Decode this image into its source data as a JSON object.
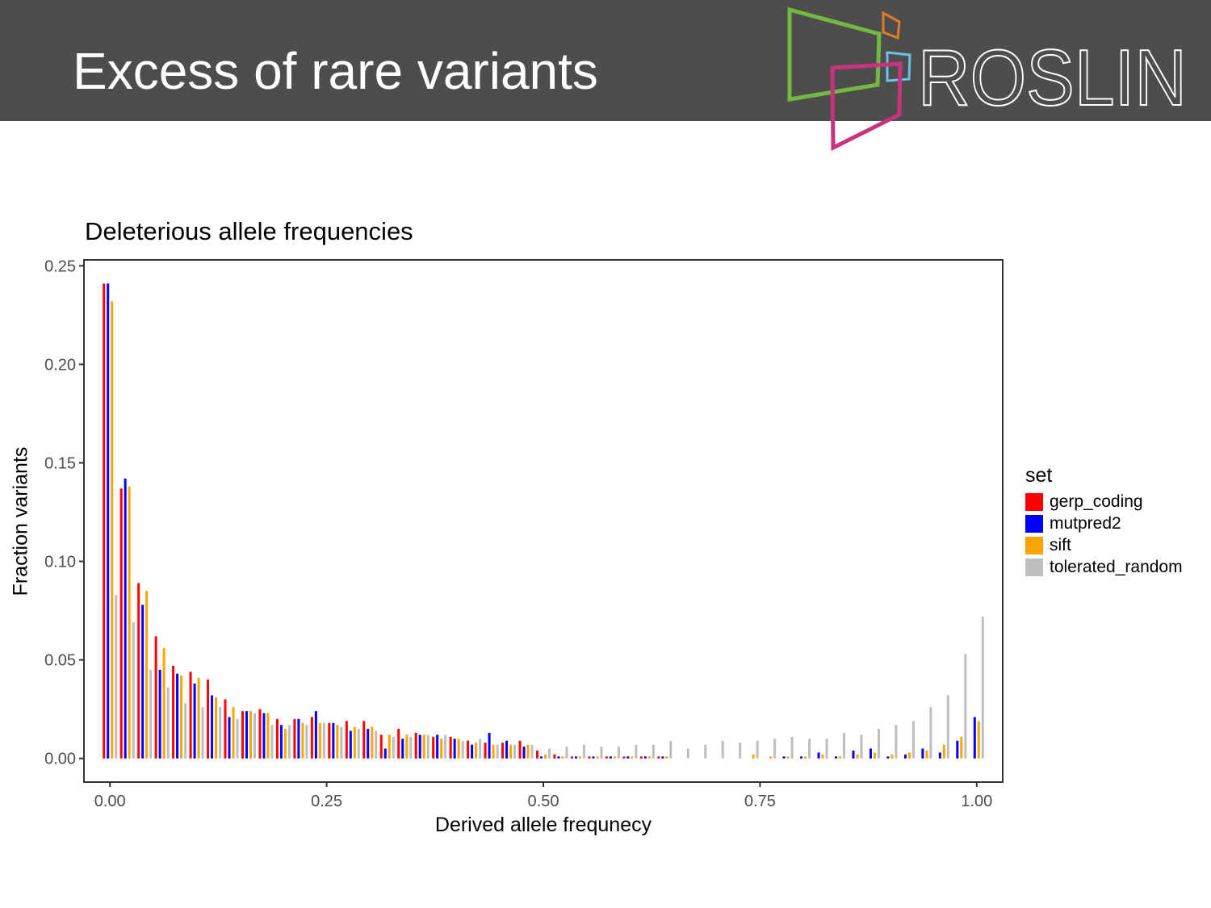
{
  "slide": {
    "title": "Excess of rare variants",
    "logo_text": "ROSLIN",
    "header_color": "#4d4d4d"
  },
  "chart_data": {
    "type": "bar",
    "title": "Deleterious allele frequencies",
    "xlabel": "Derived allele frequnecy",
    "ylabel": "Fraction variants",
    "xlim": [
      -0.03,
      1.03
    ],
    "ylim": [
      -0.012,
      0.253
    ],
    "x_ticks": [
      "0.00",
      "0.25",
      "0.50",
      "0.75",
      "1.00"
    ],
    "x_tick_values": [
      0,
      0.25,
      0.5,
      0.75,
      1
    ],
    "y_ticks": [
      "0.00",
      "0.05",
      "0.10",
      "0.15",
      "0.20",
      "0.25"
    ],
    "y_tick_values": [
      0,
      0.05,
      0.1,
      0.15,
      0.2,
      0.25
    ],
    "grid": false,
    "legend_title": "set",
    "legend_position": "right",
    "x": [
      0,
      0.02,
      0.04,
      0.06,
      0.08,
      0.1,
      0.12,
      0.14,
      0.16,
      0.18,
      0.2,
      0.22,
      0.24,
      0.26,
      0.28,
      0.3,
      0.32,
      0.34,
      0.36,
      0.38,
      0.4,
      0.42,
      0.44,
      0.46,
      0.48,
      0.5,
      0.52,
      0.54,
      0.56,
      0.58,
      0.6,
      0.62,
      0.64,
      0.66,
      0.68,
      0.7,
      0.72,
      0.74,
      0.76,
      0.78,
      0.8,
      0.82,
      0.84,
      0.86,
      0.88,
      0.9,
      0.92,
      0.94,
      0.96,
      0.98,
      1.0
    ],
    "series": [
      {
        "name": "gerp_coding",
        "color": "#ff0000",
        "values": [
          0.241,
          0.137,
          0.089,
          0.062,
          0.047,
          0.044,
          0.04,
          0.03,
          0.024,
          0.025,
          0.02,
          0.02,
          0.021,
          0.018,
          0.019,
          0.019,
          0.012,
          0.015,
          0.013,
          0.011,
          0.011,
          0.009,
          0.008,
          0.008,
          0.009,
          0.004,
          0.002,
          0.001,
          0.001,
          0.001,
          0.001,
          0.001,
          0.001,
          0,
          0,
          0,
          0,
          0,
          0,
          0,
          0,
          0,
          0,
          0,
          0,
          0,
          0,
          0,
          0,
          0,
          0
        ]
      },
      {
        "name": "mutpred2",
        "color": "#0000ff",
        "values": [
          0.241,
          0.142,
          0.078,
          0.045,
          0.043,
          0.038,
          0.032,
          0.021,
          0.024,
          0.023,
          0.017,
          0.02,
          0.024,
          0.018,
          0.014,
          0.015,
          0.005,
          0.01,
          0.012,
          0.012,
          0.01,
          0.007,
          0.013,
          0.009,
          0.006,
          0.001,
          0.001,
          0.001,
          0.001,
          0.001,
          0.001,
          0.001,
          0.001,
          0,
          0,
          0,
          0,
          0,
          0,
          0.001,
          0.001,
          0.003,
          0.001,
          0.004,
          0.005,
          0.001,
          0.002,
          0.005,
          0.003,
          0.009,
          0.021
        ]
      },
      {
        "name": "sift",
        "color": "#ffa500",
        "values": [
          0.232,
          0.138,
          0.085,
          0.056,
          0.042,
          0.041,
          0.031,
          0.026,
          0.024,
          0.023,
          0.015,
          0.018,
          0.018,
          0.017,
          0.016,
          0.016,
          0.012,
          0.012,
          0.012,
          0.01,
          0.01,
          0.008,
          0.007,
          0.007,
          0.007,
          0.002,
          0.001,
          0.001,
          0.001,
          0.001,
          0.001,
          0.001,
          0.001,
          0,
          0,
          0,
          0,
          0.002,
          0.001,
          0.001,
          0.001,
          0.002,
          0.001,
          0.002,
          0.003,
          0.002,
          0.003,
          0.004,
          0.007,
          0.011,
          0.019
        ]
      },
      {
        "name": "tolerated_random",
        "color": "#bebebe",
        "values": [
          0.083,
          0.069,
          0.045,
          0.036,
          0.028,
          0.026,
          0.026,
          0.02,
          0.023,
          0.017,
          0.017,
          0.017,
          0.018,
          0.016,
          0.015,
          0.014,
          0.011,
          0.011,
          0.012,
          0.012,
          0.009,
          0.01,
          0.007,
          0.007,
          0.007,
          0.005,
          0.006,
          0.007,
          0.006,
          0.006,
          0.007,
          0.007,
          0.009,
          0.005,
          0.007,
          0.009,
          0.008,
          0.009,
          0.01,
          0.011,
          0.01,
          0.01,
          0.013,
          0.012,
          0.015,
          0.017,
          0.019,
          0.026,
          0.032,
          0.053,
          0.072
        ]
      }
    ]
  }
}
